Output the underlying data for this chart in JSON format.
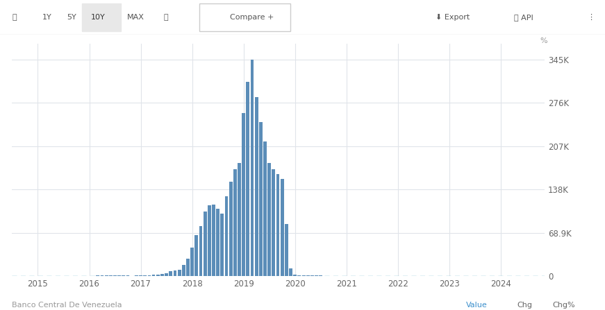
{
  "background_color": "#ffffff",
  "plot_bg_color": "#ffffff",
  "bar_color": "#5b8db8",
  "dashed_line_color": "#6bbdd4",
  "grid_color": "#e0e4ea",
  "toolbar_bg": "#f5f5f5",
  "toolbar_border": "#e0e0e0",
  "ytick_labels": [
    "0",
    "68.9K",
    "138K",
    "207K",
    "276K",
    "345K"
  ],
  "ytick_values": [
    0,
    68900,
    138000,
    207000,
    276000,
    345000
  ],
  "ylim": [
    0,
    370000
  ],
  "xtick_labels": [
    "2015",
    "2016",
    "2017",
    "2018",
    "2019",
    "2020",
    "2021",
    "2022",
    "2023",
    "2024"
  ],
  "xtick_positions": [
    2015,
    2016,
    2017,
    2018,
    2019,
    2020,
    2021,
    2022,
    2023,
    2024
  ],
  "xlim_min": 2014.5,
  "xlim_max": 2024.85,
  "source_text": "Banco Central De Venezuela",
  "source_color": "#999999",
  "footer_labels": [
    "Value",
    "Chg",
    "Chg%"
  ],
  "footer_colors": [
    "#3b8fcc",
    "#666666",
    "#666666"
  ],
  "bar_width": 0.065,
  "months": [
    2014.917,
    2015.0,
    2015.083,
    2015.167,
    2015.25,
    2015.333,
    2015.417,
    2015.5,
    2015.583,
    2015.667,
    2015.75,
    2015.833,
    2015.917,
    2016.0,
    2016.083,
    2016.167,
    2016.25,
    2016.333,
    2016.417,
    2016.5,
    2016.583,
    2016.667,
    2016.75,
    2016.833,
    2016.917,
    2017.0,
    2017.083,
    2017.167,
    2017.25,
    2017.333,
    2017.417,
    2017.5,
    2017.583,
    2017.667,
    2017.75,
    2017.833,
    2017.917,
    2018.0,
    2018.083,
    2018.167,
    2018.25,
    2018.333,
    2018.417,
    2018.5,
    2018.583,
    2018.667,
    2018.75,
    2018.833,
    2018.917,
    2019.0,
    2019.083,
    2019.167,
    2019.25,
    2019.333,
    2019.417,
    2019.5,
    2019.583,
    2019.667,
    2019.75,
    2019.833,
    2019.917,
    2020.0,
    2020.083,
    2020.167,
    2020.25,
    2020.333,
    2020.417,
    2020.5,
    2020.583,
    2020.667,
    2020.75,
    2020.833,
    2020.917,
    2021.0
  ],
  "values": [
    200,
    180,
    210,
    240,
    270,
    310,
    290,
    300,
    370,
    410,
    380,
    420,
    430,
    490,
    570,
    800,
    770,
    900,
    1100,
    1050,
    720,
    700,
    650,
    610,
    640,
    900,
    1200,
    1600,
    2000,
    2100,
    3400,
    4800,
    8200,
    9000,
    10000,
    18000,
    28000,
    45000,
    65000,
    80000,
    103000,
    113000,
    114000,
    107000,
    100000,
    127000,
    150000,
    170000,
    180000,
    260000,
    310000,
    345000,
    285000,
    245000,
    215000,
    180000,
    170000,
    163000,
    155000,
    83000,
    12000,
    2800,
    1600,
    1350,
    1380,
    1200,
    950,
    800,
    560,
    410,
    340,
    280,
    240,
    200
  ]
}
